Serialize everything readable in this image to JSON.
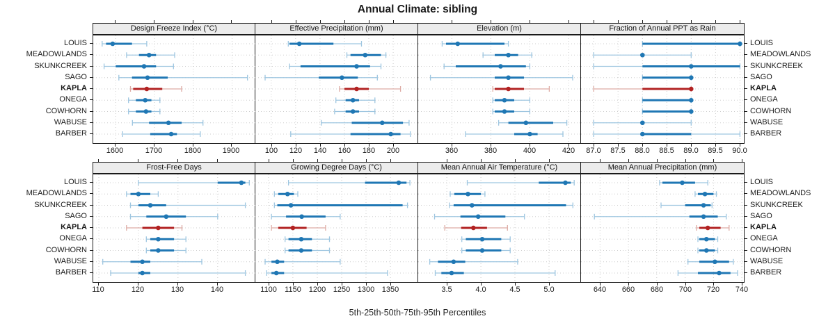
{
  "title": "Annual Climate: sibling",
  "caption": "5th-25th-50th-75th-95th Percentiles",
  "colors": {
    "series_blue": "#1f77b4",
    "series_blue_light": "#9ec6e0",
    "highlight_red": "#b22222",
    "highlight_red_light": "#ddaba4",
    "grid": "#cdcdcd",
    "strip_bg": "#ececec",
    "frame": "#1a1a1a"
  },
  "chart_data": {
    "type": "dot-interval trellis (5th-25th-50th-75th-95th percentile plot)",
    "title": "Annual Climate: sibling",
    "xlabel": "5th-25th-50th-75th-95th Percentiles",
    "legend_position": "none",
    "grid": "dotted",
    "categories": [
      "LOUIS",
      "MEADOWLANDS",
      "SKUNKCREEK",
      "SAGO",
      "KAPLA",
      "ONEGA",
      "COWHORN",
      "WABUSE",
      "BARBER"
    ],
    "highlight_category": "KAPLA",
    "percentiles": [
      5,
      25,
      50,
      75,
      95
    ],
    "panels": [
      {
        "title": "Design Freeze Index (°C)",
        "xlim": [
          1542,
          1962
        ],
        "ticks": [
          1600,
          1700,
          1800,
          1900
        ],
        "decimals": 0,
        "values": {
          "LOUIS": [
            1565,
            1575,
            1592,
            1642,
            1680
          ],
          "MEADOWLANDS": [
            1628,
            1660,
            1686,
            1704,
            1752
          ],
          "SKUNKCREEK": [
            1570,
            1600,
            1673,
            1704,
            1749
          ],
          "SAGO": [
            1608,
            1642,
            1682,
            1734,
            1940
          ],
          "KAPLA": [
            1638,
            1645,
            1680,
            1720,
            1770
          ],
          "ONEGA": [
            1633,
            1652,
            1676,
            1692,
            1714
          ],
          "COWHORN": [
            1633,
            1652,
            1678,
            1692,
            1714
          ],
          "WABUSE": [
            1643,
            1686,
            1736,
            1770,
            1825
          ],
          "BARBER": [
            1618,
            1689,
            1743,
            1758,
            1818
          ]
        }
      },
      {
        "title": "Effective Precipitation (mm)",
        "xlim": [
          87,
          220.5
        ],
        "ticks": [
          100,
          120,
          140,
          160,
          180,
          200
        ],
        "decimals": 0,
        "values": {
          "LOUIS": [
            114,
            115,
            123,
            151,
            174
          ],
          "MEADOWLANDS": [
            162,
            165,
            177,
            190,
            194
          ],
          "SKUNKCREEK": [
            115,
            124,
            170,
            181,
            190
          ],
          "SAGO": [
            95,
            139,
            158,
            171,
            187
          ],
          "KAPLA": [
            156,
            160,
            170,
            180,
            206
          ],
          "ONEGA": [
            153,
            161,
            167,
            172,
            185
          ],
          "COWHORN": [
            152,
            161,
            167,
            172,
            185
          ],
          "WABUSE": [
            141,
            166,
            191,
            208,
            213
          ],
          "BARBER": [
            116,
            165,
            198,
            206,
            214
          ]
        }
      },
      {
        "title": "Elevation (m)",
        "xlim": [
          342.7,
          426.3
        ],
        "ticks": [
          360,
          380,
          400,
          420
        ],
        "decimals": 0,
        "values": {
          "LOUIS": [
            355,
            357,
            363,
            387,
            389
          ],
          "MEADOWLANDS": [
            376,
            382,
            389,
            394,
            401
          ],
          "SKUNKCREEK": [
            356,
            362,
            385,
            398,
            400
          ],
          "SAGO": [
            349,
            382,
            389,
            397,
            422
          ],
          "KAPLA": [
            381,
            382,
            389,
            397,
            410
          ],
          "ONEGA": [
            381,
            382,
            387,
            392,
            400
          ],
          "COWHORN": [
            381,
            382,
            387,
            392,
            400
          ],
          "WABUSE": [
            384,
            389,
            398,
            412,
            419
          ],
          "BARBER": [
            367,
            392,
            400,
            404,
            417
          ]
        }
      },
      {
        "title": "Fraction of Annual PPT as Rain",
        "xlim": [
          86.74,
          90.08
        ],
        "ticks": [
          87.0,
          87.5,
          88.0,
          88.5,
          89.0,
          89.5,
          90.0
        ],
        "decimals": 1,
        "values": {
          "LOUIS": [
            88,
            88,
            90,
            90,
            90
          ],
          "MEADOWLANDS": [
            87,
            88,
            88,
            88,
            89
          ],
          "SKUNKCREEK": [
            87,
            88,
            89,
            90,
            90
          ],
          "SAGO": [
            88,
            88,
            89,
            89,
            89
          ],
          "KAPLA": [
            87,
            88,
            89,
            89,
            89
          ],
          "ONEGA": [
            88,
            88,
            89,
            89,
            89
          ],
          "COWHORN": [
            88,
            88,
            89,
            89,
            89
          ],
          "WABUSE": [
            87,
            88,
            88,
            88,
            89
          ],
          "BARBER": [
            87,
            88,
            88,
            89,
            90
          ]
        }
      },
      {
        "title": "Frost-Free Days",
        "xlim": [
          108.6,
          149.7
        ],
        "ticks": [
          110,
          120,
          130,
          140
        ],
        "decimals": 0,
        "values": {
          "LOUIS": [
            120,
            140,
            146,
            147,
            148
          ],
          "MEADOWLANDS": [
            117,
            118,
            120,
            123,
            125
          ],
          "SKUNKCREEK": [
            118,
            120,
            123,
            127,
            147
          ],
          "SAGO": [
            118,
            122,
            127,
            132,
            140
          ],
          "KAPLA": [
            117,
            121,
            125,
            129,
            131
          ],
          "ONEGA": [
            122,
            123,
            125,
            129,
            132
          ],
          "COWHORN": [
            122,
            123,
            125,
            129,
            132
          ],
          "WABUSE": [
            111,
            118,
            121,
            123,
            136
          ],
          "BARBER": [
            113,
            120,
            121,
            123,
            147
          ]
        }
      },
      {
        "title": "Growing Degree Days (°C)",
        "xlim": [
          1073,
          1407
        ],
        "ticks": [
          1100,
          1150,
          1200,
          1250,
          1300,
          1350
        ],
        "decimals": 0,
        "values": {
          "LOUIS": [
            1141,
            1298,
            1367,
            1383,
            1390
          ],
          "MEADOWLANDS": [
            1112,
            1120,
            1139,
            1152,
            1160
          ],
          "SKUNKCREEK": [
            1112,
            1118,
            1146,
            1375,
            1385
          ],
          "SAGO": [
            1106,
            1136,
            1168,
            1217,
            1247
          ],
          "KAPLA": [
            1106,
            1120,
            1150,
            1178,
            1217
          ],
          "ONEGA": [
            1134,
            1141,
            1167,
            1189,
            1225
          ],
          "COWHORN": [
            1134,
            1141,
            1167,
            1189,
            1225
          ],
          "WABUSE": [
            1093,
            1106,
            1118,
            1132,
            1247
          ],
          "BARBER": [
            1096,
            1106,
            1116,
            1132,
            1344
          ]
        }
      },
      {
        "title": "Mean Annual Air Temperature (°C)",
        "xlim": [
          3.08,
          5.47
        ],
        "ticks": [
          3.5,
          4.0,
          4.5,
          5.0
        ],
        "decimals": 1,
        "values": {
          "LOUIS": [
            3.8,
            4.85,
            5.24,
            5.32,
            5.37
          ],
          "MEADOWLANDS": [
            3.55,
            3.61,
            3.81,
            4.0,
            4.06
          ],
          "SKUNKCREEK": [
            3.54,
            3.6,
            3.87,
            5.25,
            5.35
          ],
          "SAGO": [
            3.32,
            3.7,
            3.96,
            4.36,
            4.64
          ],
          "KAPLA": [
            3.47,
            3.71,
            3.89,
            4.09,
            4.39
          ],
          "ONEGA": [
            3.72,
            3.78,
            4.02,
            4.3,
            4.43
          ],
          "COWHORN": [
            3.72,
            3.78,
            4.02,
            4.3,
            4.43
          ],
          "WABUSE": [
            3.25,
            3.37,
            3.6,
            3.77,
            4.54
          ],
          "BARBER": [
            3.33,
            3.42,
            3.57,
            3.75,
            5.09
          ]
        }
      },
      {
        "title": "Mean Annual Precipitation (mm)",
        "xlim": [
          626.6,
          741.4
        ],
        "ticks": [
          640,
          660,
          680,
          700,
          720,
          740
        ],
        "decimals": 0,
        "values": {
          "LOUIS": [
            682,
            684,
            698,
            707,
            716
          ],
          "MEADOWLANDS": [
            707,
            709,
            714,
            720,
            722
          ],
          "SKUNKCREEK": [
            683,
            700,
            713,
            718,
            719
          ],
          "SAGO": [
            636,
            703,
            713,
            723,
            729
          ],
          "KAPLA": [
            708,
            710,
            716,
            725,
            731
          ],
          "ONEGA": [
            709,
            710,
            715,
            721,
            723
          ],
          "COWHORN": [
            709,
            710,
            715,
            721,
            723
          ],
          "WABUSE": [
            702,
            710,
            721,
            731,
            734
          ],
          "BARBER": [
            695,
            709,
            724,
            732,
            737
          ]
        }
      }
    ]
  }
}
